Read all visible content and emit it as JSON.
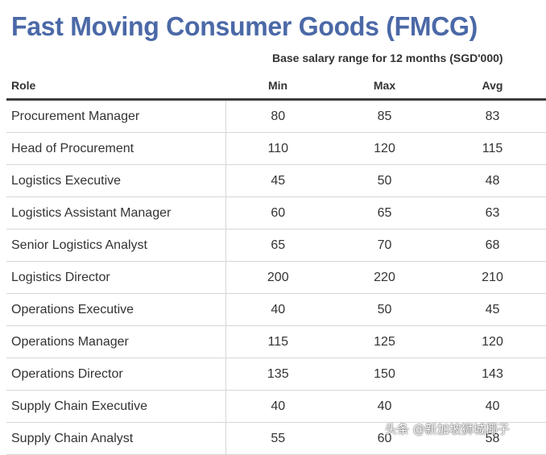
{
  "title": "Fast Moving Consumer Goods (FMCG)",
  "subtitle": "Base salary range for 12 months (SGD'000)",
  "columns": {
    "role": "Role",
    "min": "Min",
    "max": "Max",
    "avg": "Avg"
  },
  "rows": [
    {
      "role": "Procurement Manager",
      "min": "80",
      "max": "85",
      "avg": "83"
    },
    {
      "role": "Head of Procurement",
      "min": "110",
      "max": "120",
      "avg": "115"
    },
    {
      "role": "Logistics Executive",
      "min": "45",
      "max": "50",
      "avg": "48"
    },
    {
      "role": "Logistics Assistant Manager",
      "min": "60",
      "max": "65",
      "avg": "63"
    },
    {
      "role": "Senior Logistics Analyst",
      "min": "65",
      "max": "70",
      "avg": "68"
    },
    {
      "role": "Logistics Director",
      "min": "200",
      "max": "220",
      "avg": "210"
    },
    {
      "role": "Operations Executive",
      "min": "40",
      "max": "50",
      "avg": "45"
    },
    {
      "role": "Operations Manager",
      "min": "115",
      "max": "125",
      "avg": "120"
    },
    {
      "role": "Operations Director",
      "min": "135",
      "max": "150",
      "avg": "143"
    },
    {
      "role": "Supply Chain Executive",
      "min": "40",
      "max": "40",
      "avg": "40"
    },
    {
      "role": "Supply Chain Analyst",
      "min": "55",
      "max": "60",
      "avg": "58"
    }
  ],
  "watermark": "头条 @新加坡狮城椰子",
  "colors": {
    "title": "#4b69a7",
    "text": "#333333",
    "rule": "#d6d6d6",
    "header_rule": "#3c3c3c"
  }
}
